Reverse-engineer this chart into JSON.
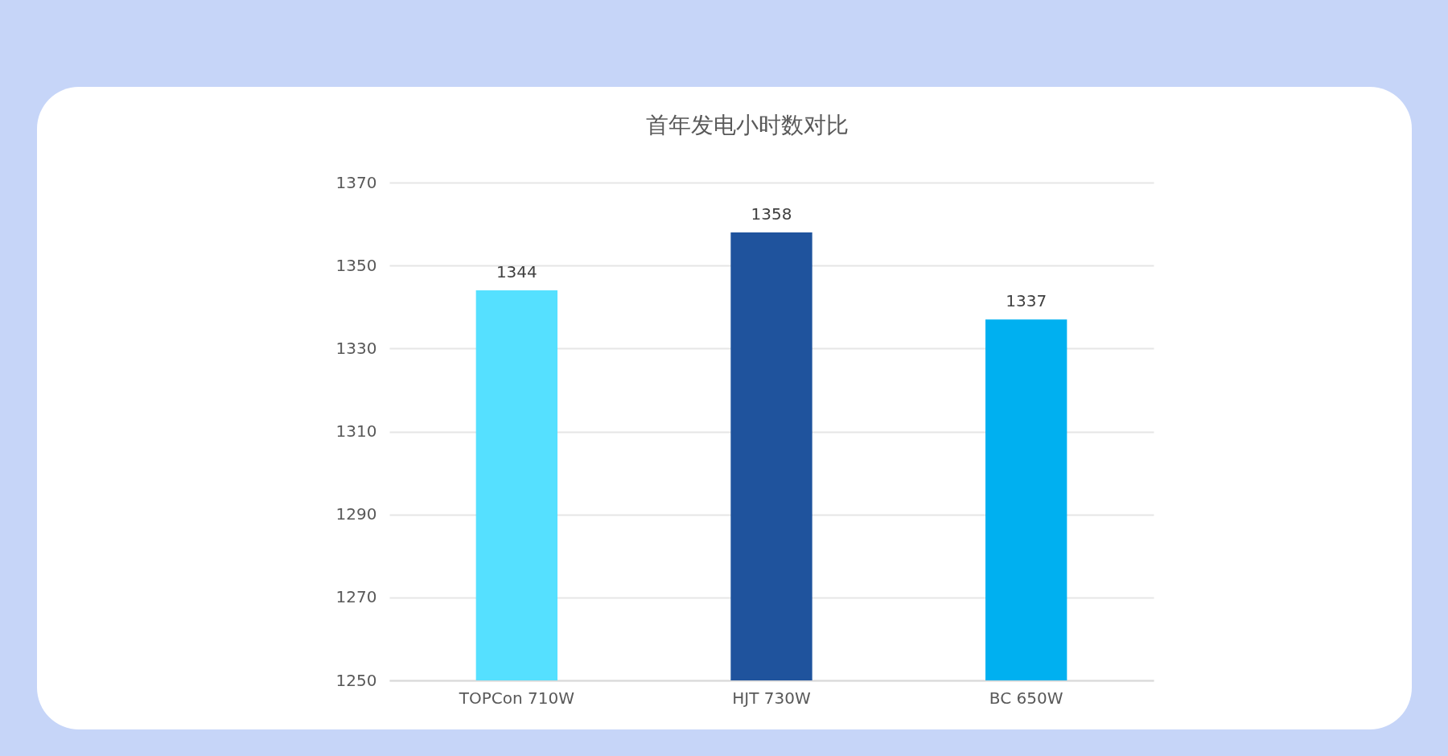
{
  "chart_data": {
    "type": "bar",
    "title": "首年发电小时数对比",
    "categories": [
      "TOPCon 710W",
      "HJT 730W",
      "BC 650W"
    ],
    "values": [
      1344,
      1358,
      1337
    ],
    "colors": [
      "#55e0ff",
      "#1f539d",
      "#00b0f0"
    ],
    "ylim": [
      1250,
      1370
    ],
    "yticks": [
      1250,
      1270,
      1290,
      1310,
      1330,
      1350,
      1370
    ],
    "grid": "y",
    "data_labels": true
  }
}
